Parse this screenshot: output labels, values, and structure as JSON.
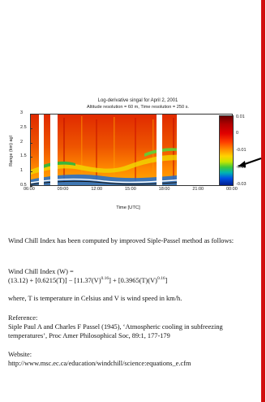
{
  "figure": {
    "title_line1": "Log-derivative singal for April 2, 2001",
    "title_line2": "Altitude resolution = 60 m, Time resolution = 250 s.",
    "ylabel": "Range (km) agl",
    "xlabel": "Time [UTC]",
    "colorbar_labels": [
      "0.01",
      "0",
      "-0.01",
      "-0.02",
      "-0.03"
    ],
    "arrow_icon": "black-arrow-pointing-left"
  },
  "chart_data": {
    "type": "heatmap",
    "title": "Log-derivative singal for April 2, 2001",
    "subtitle": "Altitude resolution = 60 m, Time resolution = 250 s.",
    "xlabel": "Time [UTC]",
    "ylabel": "Range (km) agl",
    "x_ticks": [
      "06:00",
      "09:00",
      "12:00",
      "15:00",
      "18:00",
      "21:00",
      "00:00"
    ],
    "y_ticks": [
      "0.5",
      "1",
      "1.5",
      "2",
      "2.5",
      "3"
    ],
    "ylim": [
      0.5,
      3
    ],
    "colorbar": {
      "range": [
        -0.03,
        0.01
      ],
      "ticks": [
        "0.01",
        "0",
        "-0.01",
        "-0.02",
        "-0.03"
      ]
    },
    "data_gaps_utc": [
      [
        "06:30",
        "07:00"
      ],
      [
        "07:45",
        "08:45"
      ],
      [
        "17:45",
        "18:30"
      ],
      [
        "20:00",
        "00:00"
      ]
    ],
    "grid": false
  },
  "doc": {
    "p1": "Wind Chill Index has been computed by improved Siple-Passel method as follows:",
    "formula_line1": "Wind Chill Index (W) =",
    "f_a": "(13.12) + [0.6215(T)] − [11.37(V)",
    "f_sup1": "0.16",
    "f_b": "] + [0.3965(T)(V)",
    "f_sup2": "0.16",
    "f_c": "]",
    "p3": "where,  T is temperature in Celsius and V is wind speed in km/h.",
    "ref_heading": "Reference:",
    "ref_text": "Siple Paul A and Charles F Passel (1945), ‘Atmospheric cooling in subfreezing temperatures’, Proc Amer Philosophical Soc, 89:1, 177-179",
    "web_heading": "Website:",
    "web_url": "http://www.msc.ec.ca/education/windchill/science:equations_e.cfm"
  }
}
